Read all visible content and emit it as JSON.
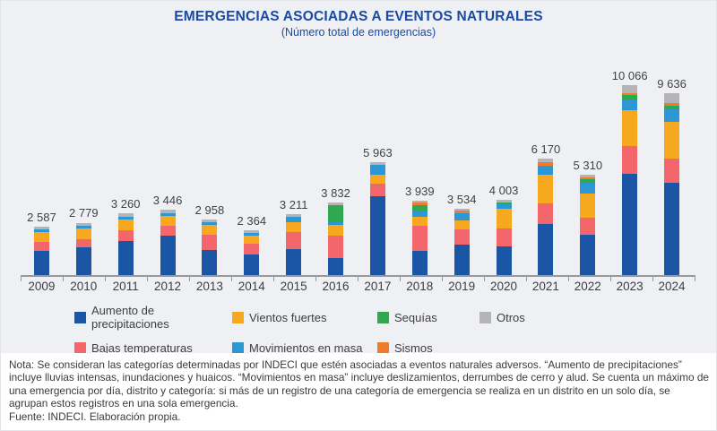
{
  "chart_data": {
    "type": "bar",
    "variant": "stacked",
    "title": "EMERGENCIAS ASOCIADAS A EVENTOS NATURALES",
    "subtitle": "(Número total de emergencias)",
    "categories": [
      "2009",
      "2010",
      "2011",
      "2012",
      "2013",
      "2014",
      "2015",
      "2016",
      "2017",
      "2018",
      "2019",
      "2020",
      "2021",
      "2022",
      "2023",
      "2024"
    ],
    "totals": [
      2587,
      2779,
      3260,
      3446,
      2958,
      2364,
      3211,
      3832,
      5963,
      3939,
      3534,
      4003,
      6170,
      5310,
      10066,
      9636
    ],
    "total_labels": [
      "2 587",
      "2 779",
      "3 260",
      "3 446",
      "2 958",
      "2 364",
      "3 211",
      "3 832",
      "5 963",
      "3 939",
      "3 534",
      "4 003",
      "6 170",
      "5 310",
      "10 066",
      "9 636"
    ],
    "stack_order_bottom_to_top": [
      "Aumento de precipitaciones",
      "Bajas temperaturas",
      "Vientos fuertes",
      "Movimientos en masa",
      "Sequías",
      "Sismos",
      "Otros"
    ],
    "series": [
      {
        "name": "Aumento de precipitaciones",
        "color": "#1b55a5",
        "values": [
          1274,
          1455,
          1820,
          2070,
          1307,
          1090,
          1360,
          910,
          4190,
          1275,
          1607,
          1535,
          2712,
          2152,
          5383,
          4905
        ]
      },
      {
        "name": "Bajas temperaturas",
        "color": "#f2666c",
        "values": [
          468,
          462,
          560,
          519,
          834,
          567,
          898,
          1169,
          644,
          1323,
          797,
          917,
          1082,
          877,
          1434,
          1274
        ]
      },
      {
        "name": "Vientos fuertes",
        "color": "#f8a81f",
        "values": [
          562,
          566,
          574,
          533,
          533,
          437,
          540,
          570,
          483,
          510,
          498,
          1083,
          1503,
          1277,
          1911,
          1944
        ]
      },
      {
        "name": "Movimientos en masa",
        "color": "#2b98d5",
        "values": [
          134,
          148,
          130,
          179,
          142,
          135,
          280,
          161,
          516,
          319,
          364,
          200,
          485,
          606,
          542,
          669
        ]
      },
      {
        "name": "Sequías",
        "color": "#2fa84f",
        "values": [
          0,
          0,
          0,
          0,
          0,
          0,
          0,
          891,
          0,
          300,
          0,
          134,
          0,
          180,
          287,
          175
        ]
      },
      {
        "name": "Sismos",
        "color": "#ee7c2f",
        "values": [
          0,
          0,
          0,
          0,
          0,
          0,
          0,
          0,
          0,
          100,
          134,
          0,
          194,
          95,
          95,
          143
        ]
      },
      {
        "name": "Otros",
        "color": "#b4b4b6",
        "values": [
          149,
          148,
          176,
          145,
          142,
          135,
          133,
          131,
          130,
          112,
          134,
          134,
          194,
          123,
          414,
          526
        ]
      }
    ],
    "ylim": [
      0,
      10500
    ],
    "grid": false,
    "legend_position": "bottom"
  },
  "legend": {
    "items": [
      {
        "label": "Aumento de precipitaciones",
        "color": "#1b55a5"
      },
      {
        "label": "Vientos fuertes",
        "color": "#f8a81f"
      },
      {
        "label": "Sequías",
        "color": "#2fa84f"
      },
      {
        "label": "Otros",
        "color": "#b4b4b6"
      },
      {
        "label": "Bajas temperaturas",
        "color": "#f2666c"
      },
      {
        "label": "Movimientos en masa",
        "color": "#2b98d5"
      },
      {
        "label": "Sismos",
        "color": "#ee7c2f"
      }
    ]
  },
  "note": {
    "text": "Nota: Se consideran las categorías determinadas por INDECI que estén asociadas a eventos naturales adversos. “Aumento de precipitaciones” incluye lluvias intensas, inundaciones y huaicos. “Movimientos en masa” incluye deslizamientos, derrumbes de cerro y alud. Se cuenta un máximo de una emergencia por día, distrito y categoría: si más de un registro de una categoría de emergencia se realiza en un distrito en un solo día, se agrupan estos registros en una sola emergencia.",
    "source": "Fuente: INDECI. Elaboración propia."
  }
}
